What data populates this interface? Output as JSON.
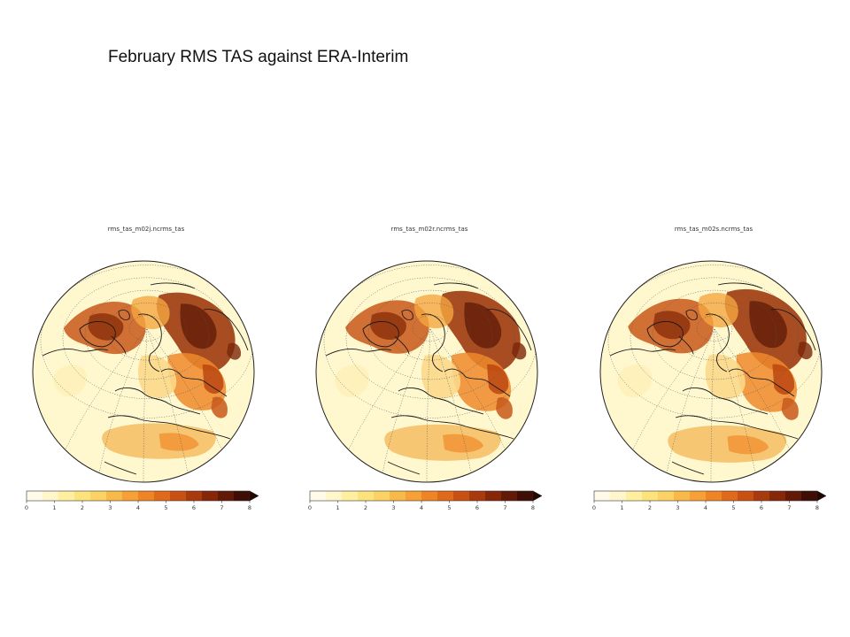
{
  "slide": {
    "title": "February RMS TAS against ERA-Interim"
  },
  "panels": [
    {
      "title": "rms_tas_m02j.ncrms_tas"
    },
    {
      "title": "rms_tas_m02r.ncrms_tas"
    },
    {
      "title": "rms_tas_m02s.ncrms_tas"
    }
  ],
  "colorbar": {
    "ticks": [
      "0",
      "1",
      "2",
      "3",
      "4",
      "5",
      "6",
      "7",
      "8"
    ],
    "extend": "max",
    "colors": [
      "#fffbe8",
      "#fff6cc",
      "#ffef9e",
      "#fde37c",
      "#fcd265",
      "#f9b948",
      "#f6a036",
      "#ef8424",
      "#e06a1a",
      "#c95013",
      "#a83a0d",
      "#86270a",
      "#621a07",
      "#3e0d04"
    ]
  },
  "map": {
    "projection": "orthographic",
    "land_fill": "#fff8cf",
    "high_error_color": "#b8410e",
    "mid_error_color": "#ee8a2c",
    "low_error_color": "#fbd88a"
  }
}
